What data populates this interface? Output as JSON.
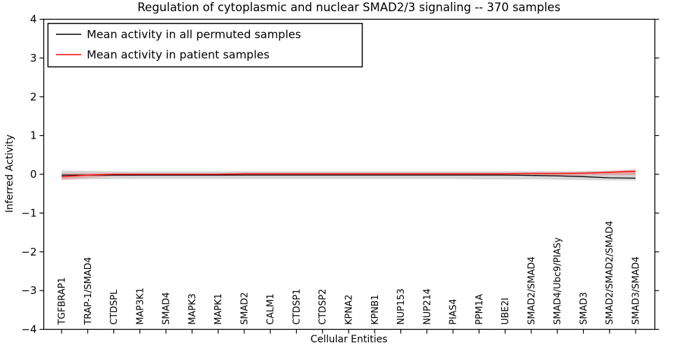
{
  "chart_data": {
    "type": "line",
    "title": "Regulation of cytoplasmic and nuclear SMAD2/3 signaling -- 370 samples",
    "xlabel": "Cellular Entities",
    "ylabel": "Inferred Activity",
    "ylim": [
      -4,
      4
    ],
    "yticks": [
      -4,
      -3,
      -2,
      -1,
      0,
      1,
      2,
      3,
      4
    ],
    "grid": false,
    "legend_position": "upper left",
    "categories": [
      "TGFBRAP1",
      "TRAP-1/SMAD4",
      "CTDSPL",
      "MAP3K1",
      "SMAD4",
      "MAPK3",
      "MAPK1",
      "SMAD2",
      "CALM1",
      "CTDSP1",
      "CTDSP2",
      "KPNA2",
      "KPNB1",
      "NUP153",
      "NUP214",
      "PIAS4",
      "PPM1A",
      "UBE2I",
      "SMAD2/SMAD4",
      "SMAD4/Ubc9/PIASy",
      "SMAD3",
      "SMAD2/SMAD2/SMAD4",
      "SMAD3/SMAD4"
    ],
    "series": [
      {
        "name": "Mean activity in all permuted samples",
        "color": "#000000",
        "band_color": "rgba(0,0,0,0.16)",
        "values": [
          -0.02,
          -0.02,
          -0.02,
          -0.02,
          -0.02,
          -0.02,
          -0.02,
          -0.02,
          -0.02,
          -0.02,
          -0.02,
          -0.02,
          -0.02,
          -0.02,
          -0.02,
          -0.02,
          -0.02,
          -0.02,
          -0.03,
          -0.04,
          -0.06,
          -0.09,
          -0.1
        ],
        "band_upper": [
          0.1,
          0.09,
          0.08,
          0.08,
          0.08,
          0.08,
          0.08,
          0.08,
          0.08,
          0.08,
          0.08,
          0.08,
          0.08,
          0.08,
          0.08,
          0.08,
          0.08,
          0.08,
          0.08,
          0.08,
          0.08,
          0.09,
          0.1
        ],
        "band_lower": [
          -0.14,
          -0.13,
          -0.12,
          -0.12,
          -0.12,
          -0.12,
          -0.12,
          -0.12,
          -0.12,
          -0.12,
          -0.12,
          -0.12,
          -0.12,
          -0.12,
          -0.12,
          -0.12,
          -0.13,
          -0.13,
          -0.13,
          -0.14,
          -0.15,
          -0.16,
          -0.16
        ]
      },
      {
        "name": "Mean activity in patient samples",
        "color": "#ff0000",
        "band_color": "rgba(255,0,0,0.22)",
        "values": [
          -0.06,
          -0.02,
          0.0,
          0.0,
          0.0,
          0.0,
          0.0,
          0.01,
          0.01,
          0.01,
          0.01,
          0.01,
          0.01,
          0.01,
          0.01,
          0.01,
          0.01,
          0.01,
          0.02,
          0.02,
          0.03,
          0.05,
          0.08
        ],
        "band_upper": [
          0.03,
          0.03,
          0.03,
          0.03,
          0.03,
          0.03,
          0.03,
          0.04,
          0.04,
          0.04,
          0.04,
          0.04,
          0.04,
          0.04,
          0.04,
          0.04,
          0.04,
          0.04,
          0.05,
          0.05,
          0.06,
          0.09,
          0.13
        ],
        "band_lower": [
          -0.14,
          -0.09,
          -0.05,
          -0.04,
          -0.04,
          -0.04,
          -0.04,
          -0.03,
          -0.03,
          -0.03,
          -0.03,
          -0.03,
          -0.03,
          -0.03,
          -0.03,
          -0.03,
          -0.03,
          -0.03,
          -0.03,
          -0.03,
          -0.03,
          -0.02,
          -0.02
        ]
      }
    ]
  }
}
